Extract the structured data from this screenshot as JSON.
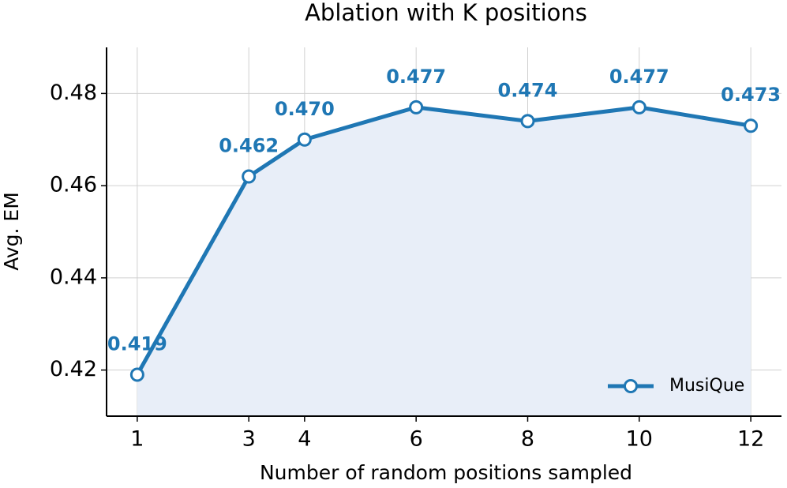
{
  "chart_data": {
    "type": "line",
    "title": "Ablation with K positions",
    "x_label": "Number of random positions sampled",
    "y_label": "Avg. EM",
    "x": [
      1,
      3,
      4,
      6,
      8,
      10,
      12
    ],
    "series": [
      {
        "name": "MusiQue",
        "color": "#1f77b4",
        "fill": "#e8eef8",
        "values": [
          0.419,
          0.462,
          0.47,
          0.477,
          0.474,
          0.477,
          0.473
        ],
        "value_labels": [
          "0.419",
          "0.462",
          "0.470",
          "0.477",
          "0.474",
          "0.477",
          "0.473"
        ]
      }
    ],
    "xlim": [
      0.45,
      12.55
    ],
    "ylim": [
      0.41,
      0.49
    ],
    "xticks": [
      1,
      3,
      4,
      6,
      8,
      10,
      12
    ],
    "yticks": [
      0.42,
      0.44,
      0.46,
      0.48
    ],
    "grid": true,
    "legend": "lower right"
  }
}
